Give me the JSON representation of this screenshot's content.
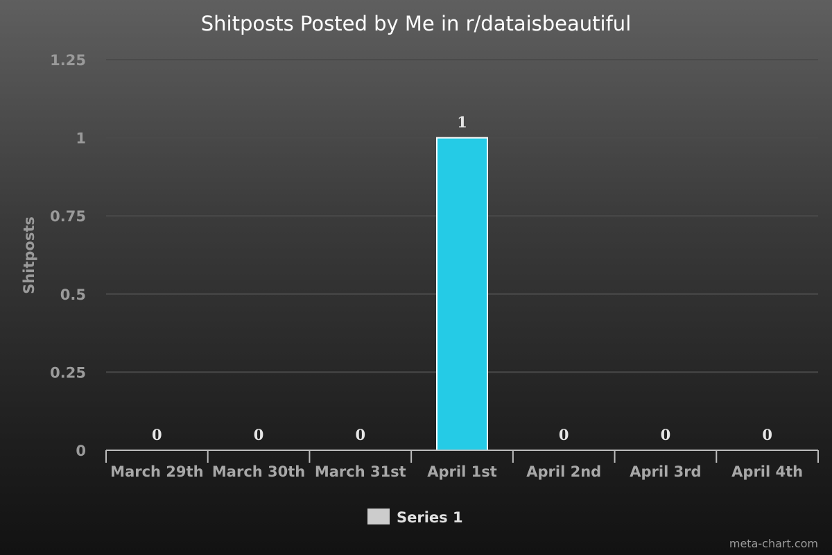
{
  "chart_data": {
    "type": "bar",
    "title": "Shitposts Posted by Me in r/dataisbeautiful",
    "xlabel": "",
    "ylabel": "Shitposts",
    "categories": [
      "March 29th",
      "March 30th",
      "March 31st",
      "April 1st",
      "April 2nd",
      "April 3rd",
      "April 4th"
    ],
    "series": [
      {
        "name": "Series 1",
        "values": [
          0,
          0,
          0,
          1,
          0,
          0,
          0
        ],
        "color": "#25cbe6",
        "legend_color": "#cccccc"
      }
    ],
    "data_labels": [
      "0",
      "0",
      "0",
      "1",
      "0",
      "0",
      "0"
    ],
    "ylim": [
      0,
      1.25
    ],
    "yticks": [
      0,
      0.25,
      0.5,
      0.75,
      1,
      1.25
    ],
    "ytick_labels": [
      "0",
      "0.25",
      "0.5",
      "0.75",
      "1",
      "1.25"
    ],
    "grid": true,
    "legend_position": "bottom-center"
  },
  "credit": "meta-chart.com"
}
